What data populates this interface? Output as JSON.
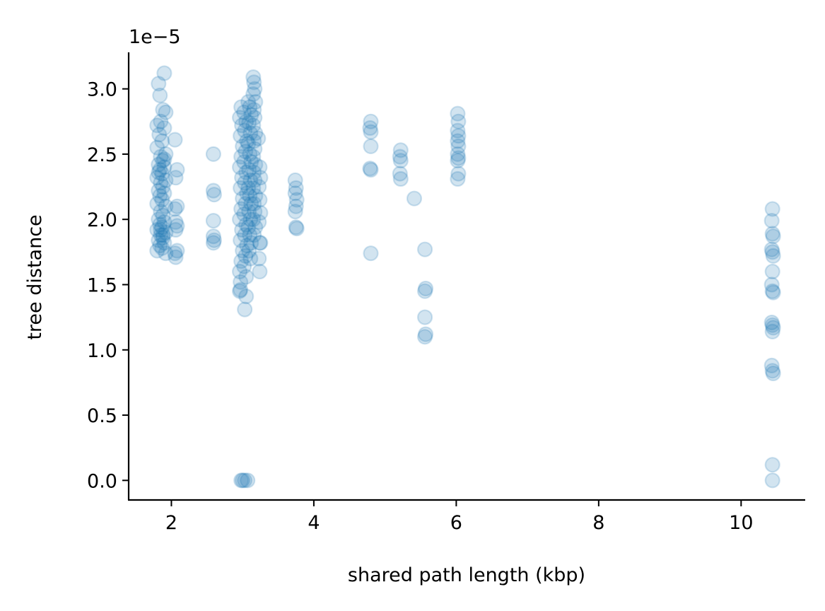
{
  "colors": {
    "point": "#1f77b4",
    "axes": "#000000"
  },
  "chart_data": {
    "type": "scatter",
    "xlabel": "shared path length (kbp)",
    "ylabel": "tree distance",
    "y_offset_label": "1e−5",
    "xlim": [
      1.4,
      10.9
    ],
    "ylim": [
      -0.15,
      3.28
    ],
    "x_ticks": [
      2,
      4,
      6,
      8,
      10
    ],
    "x_tick_labels": [
      "2",
      "4",
      "6",
      "8",
      "10"
    ],
    "y_ticks": [
      0.0,
      0.5,
      1.0,
      1.5,
      2.0,
      2.5,
      3.0
    ],
    "y_tick_labels": [
      "0.0",
      "0.5",
      "1.0",
      "1.5",
      "2.0",
      "2.5",
      "3.0"
    ],
    "grid": false,
    "marker_alpha": 0.2,
    "points": [
      [
        1.82,
        3.04
      ],
      [
        1.84,
        2.95
      ],
      [
        1.9,
        3.12
      ],
      [
        1.88,
        2.84
      ],
      [
        1.92,
        2.82
      ],
      [
        1.85,
        2.75
      ],
      [
        1.8,
        2.72
      ],
      [
        1.9,
        2.7
      ],
      [
        1.83,
        2.65
      ],
      [
        1.87,
        2.6
      ],
      [
        1.8,
        2.55
      ],
      [
        1.92,
        2.5
      ],
      [
        1.85,
        2.48
      ],
      [
        1.88,
        2.45
      ],
      [
        1.82,
        2.42
      ],
      [
        1.9,
        2.4
      ],
      [
        1.84,
        2.38
      ],
      [
        1.87,
        2.35
      ],
      [
        1.8,
        2.32
      ],
      [
        1.92,
        2.3
      ],
      [
        1.85,
        2.28
      ],
      [
        1.88,
        2.25
      ],
      [
        1.82,
        2.22
      ],
      [
        1.9,
        2.2
      ],
      [
        1.84,
        2.18
      ],
      [
        1.87,
        2.15
      ],
      [
        1.8,
        2.12
      ],
      [
        1.92,
        2.1
      ],
      [
        1.85,
        2.06
      ],
      [
        1.88,
        2.03
      ],
      [
        1.82,
        2.0
      ],
      [
        1.9,
        1.98
      ],
      [
        1.84,
        1.96
      ],
      [
        1.87,
        1.94
      ],
      [
        1.8,
        1.92
      ],
      [
        1.92,
        1.9
      ],
      [
        1.85,
        1.88
      ],
      [
        1.88,
        1.86
      ],
      [
        1.82,
        1.84
      ],
      [
        1.9,
        1.82
      ],
      [
        1.84,
        1.8
      ],
      [
        1.87,
        1.78
      ],
      [
        1.8,
        1.76
      ],
      [
        1.92,
        1.74
      ],
      [
        1.85,
        1.92
      ],
      [
        1.88,
        1.88
      ],
      [
        1.82,
        2.36
      ],
      [
        1.9,
        2.46
      ],
      [
        2.05,
        2.61
      ],
      [
        2.08,
        2.38
      ],
      [
        2.06,
        2.32
      ],
      [
        2.08,
        2.1
      ],
      [
        2.05,
        2.08
      ],
      [
        2.06,
        1.98
      ],
      [
        2.08,
        1.95
      ],
      [
        2.06,
        1.92
      ],
      [
        2.08,
        1.76
      ],
      [
        2.05,
        1.74
      ],
      [
        2.06,
        1.71
      ],
      [
        2.59,
        2.5
      ],
      [
        2.59,
        2.22
      ],
      [
        2.6,
        2.19
      ],
      [
        2.59,
        1.99
      ],
      [
        2.59,
        1.87
      ],
      [
        2.6,
        1.84
      ],
      [
        2.59,
        1.82
      ],
      [
        2.98,
        2.86
      ],
      [
        3.02,
        2.82
      ],
      [
        2.96,
        2.78
      ],
      [
        3.05,
        2.75
      ],
      [
        2.99,
        2.72
      ],
      [
        3.03,
        2.68
      ],
      [
        2.97,
        2.64
      ],
      [
        3.06,
        2.6
      ],
      [
        3.0,
        2.56
      ],
      [
        3.04,
        2.52
      ],
      [
        2.98,
        2.48
      ],
      [
        3.02,
        2.44
      ],
      [
        2.96,
        2.4
      ],
      [
        3.05,
        2.36
      ],
      [
        2.99,
        2.32
      ],
      [
        3.03,
        2.28
      ],
      [
        2.97,
        2.24
      ],
      [
        3.06,
        2.2
      ],
      [
        3.0,
        2.16
      ],
      [
        3.04,
        2.12
      ],
      [
        2.98,
        2.08
      ],
      [
        3.02,
        2.04
      ],
      [
        2.96,
        2.0
      ],
      [
        3.05,
        1.96
      ],
      [
        2.99,
        1.92
      ],
      [
        3.03,
        1.88
      ],
      [
        2.97,
        1.84
      ],
      [
        3.06,
        1.8
      ],
      [
        3.0,
        1.76
      ],
      [
        3.04,
        1.72
      ],
      [
        2.98,
        1.68
      ],
      [
        3.02,
        1.64
      ],
      [
        2.96,
        1.6
      ],
      [
        3.05,
        1.56
      ],
      [
        2.97,
        1.52
      ],
      [
        2.97,
        1.46
      ],
      [
        2.96,
        1.45
      ],
      [
        3.05,
        1.41
      ],
      [
        3.03,
        1.31
      ],
      [
        3.08,
        2.9
      ],
      [
        3.1,
        2.86
      ],
      [
        3.12,
        2.8
      ],
      [
        3.09,
        2.74
      ],
      [
        3.11,
        2.66
      ],
      [
        3.08,
        2.58
      ],
      [
        3.1,
        2.5
      ],
      [
        3.12,
        2.44
      ],
      [
        3.09,
        2.38
      ],
      [
        3.11,
        2.3
      ],
      [
        3.08,
        2.24
      ],
      [
        3.1,
        2.18
      ],
      [
        3.12,
        2.12
      ],
      [
        3.09,
        2.06
      ],
      [
        3.11,
        2.0
      ],
      [
        3.08,
        1.94
      ],
      [
        3.1,
        1.88
      ],
      [
        3.12,
        1.82
      ],
      [
        3.09,
        1.76
      ],
      [
        3.11,
        1.7
      ],
      [
        3.15,
        3.09
      ],
      [
        3.16,
        3.05
      ],
      [
        3.17,
        3.0
      ],
      [
        3.15,
        2.96
      ],
      [
        3.18,
        2.9
      ],
      [
        3.16,
        2.84
      ],
      [
        3.17,
        2.78
      ],
      [
        3.15,
        2.72
      ],
      [
        3.18,
        2.66
      ],
      [
        3.16,
        2.6
      ],
      [
        3.17,
        2.54
      ],
      [
        3.15,
        2.48
      ],
      [
        3.18,
        2.42
      ],
      [
        3.16,
        2.36
      ],
      [
        3.17,
        2.3
      ],
      [
        3.15,
        2.24
      ],
      [
        3.18,
        2.18
      ],
      [
        3.16,
        2.12
      ],
      [
        3.17,
        2.06
      ],
      [
        3.15,
        2.0
      ],
      [
        3.18,
        1.94
      ],
      [
        3.16,
        1.88
      ],
      [
        3.22,
        2.62
      ],
      [
        3.24,
        2.4
      ],
      [
        3.25,
        2.32
      ],
      [
        3.23,
        2.25
      ],
      [
        3.24,
        2.15
      ],
      [
        3.25,
        2.05
      ],
      [
        3.23,
        1.98
      ],
      [
        3.24,
        1.82
      ],
      [
        3.25,
        1.82
      ],
      [
        3.23,
        1.7
      ],
      [
        3.24,
        1.6
      ],
      [
        2.98,
        0.0
      ],
      [
        3.0,
        0.0
      ],
      [
        3.03,
        0.0
      ],
      [
        3.07,
        0.0
      ],
      [
        3.74,
        2.3
      ],
      [
        3.75,
        2.24
      ],
      [
        3.74,
        2.2
      ],
      [
        3.76,
        2.15
      ],
      [
        3.75,
        2.1
      ],
      [
        3.74,
        2.06
      ],
      [
        3.75,
        1.94
      ],
      [
        3.76,
        1.93
      ],
      [
        4.8,
        2.75
      ],
      [
        4.79,
        2.7
      ],
      [
        4.8,
        2.67
      ],
      [
        4.8,
        2.56
      ],
      [
        4.79,
        2.39
      ],
      [
        4.8,
        2.38
      ],
      [
        4.8,
        1.74
      ],
      [
        5.22,
        2.53
      ],
      [
        5.21,
        2.48
      ],
      [
        5.22,
        2.45
      ],
      [
        5.21,
        2.35
      ],
      [
        5.22,
        2.31
      ],
      [
        5.41,
        2.16
      ],
      [
        5.56,
        1.77
      ],
      [
        5.57,
        1.47
      ],
      [
        5.56,
        1.45
      ],
      [
        5.56,
        1.25
      ],
      [
        5.57,
        1.12
      ],
      [
        5.56,
        1.1
      ],
      [
        6.02,
        2.81
      ],
      [
        6.03,
        2.75
      ],
      [
        6.02,
        2.68
      ],
      [
        6.03,
        2.64
      ],
      [
        6.02,
        2.6
      ],
      [
        6.03,
        2.56
      ],
      [
        6.02,
        2.5
      ],
      [
        6.03,
        2.47
      ],
      [
        6.02,
        2.45
      ],
      [
        6.03,
        2.35
      ],
      [
        6.02,
        2.31
      ],
      [
        10.44,
        2.08
      ],
      [
        10.43,
        1.99
      ],
      [
        10.44,
        1.89
      ],
      [
        10.45,
        1.87
      ],
      [
        10.43,
        1.77
      ],
      [
        10.44,
        1.75
      ],
      [
        10.45,
        1.72
      ],
      [
        10.44,
        1.6
      ],
      [
        10.43,
        1.5
      ],
      [
        10.44,
        1.45
      ],
      [
        10.45,
        1.44
      ],
      [
        10.43,
        1.21
      ],
      [
        10.44,
        1.19
      ],
      [
        10.45,
        1.17
      ],
      [
        10.44,
        1.14
      ],
      [
        10.43,
        0.88
      ],
      [
        10.44,
        0.84
      ],
      [
        10.45,
        0.82
      ],
      [
        10.44,
        0.12
      ],
      [
        10.44,
        0.0
      ]
    ]
  }
}
